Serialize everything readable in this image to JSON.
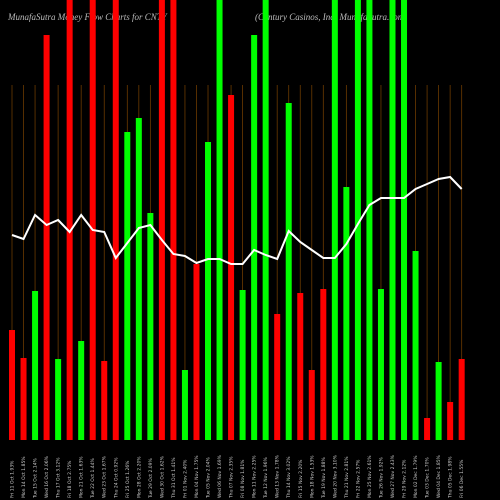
{
  "chart_data": {
    "type": "bar",
    "title": "MunafaSutra  Money Flow  Charts for CNTY",
    "subtitle": "(Century Casinos, Inc) MunafaSutra.com",
    "categories": [
      "Fri 11 Oct 1.93%",
      "Mon 14 Oct 1.85%",
      "Tue 15 Oct 2.14%",
      "Wed 16 Oct 2.06%",
      "Thu 17 Oct 3.12%",
      "Fri 18 Oct 2.75%",
      "Mon 21 Oct 1.63%",
      "Tue 22 Oct 1.44%",
      "Wed 23 Oct 1.67%",
      "Thu 24 Oct 0.92%",
      "Fri 25 Oct 1.26%",
      "Mon 28 Oct 2.20%",
      "Tue 29 Oct 2.09%",
      "Wed 30 Oct 1.62%",
      "Thu 31 Oct 1.41%",
      "Fri 01 Nov 2.40%",
      "Mon 04 Nov 1.75%",
      "Tue 05 Nov 2.04%",
      "Wed 06 Nov 1.69%",
      "Thu 07 Nov 2.35%",
      "Fri 08 Nov 1.81%",
      "Mon 11 Nov 2.25%",
      "Tue 12 Nov 1.96%",
      "Wed 13 Nov 1.78%",
      "Thu 14 Nov 3.02%",
      "Fri 15 Nov 2.20%",
      "Mon 18 Nov 1.53%",
      "Tue 19 Nov 1.88%",
      "Wed 20 Nov 3.10%",
      "Thu 21 Nov 2.81%",
      "Fri 22 Nov 2.57%",
      "Mon 25 Nov 2.61%",
      "Tue 26 Nov 1.92%",
      "Wed 27 Nov 2.43%",
      "Fri 29 Nov 2.12%",
      "Mon 02 Dec 1.79%",
      "Tue 03 Dec 1.70%",
      "Wed 04 Dec 1.85%",
      "Thu 05 Dec 1.98%",
      "Fri 06 Dec 1.55%"
    ],
    "ylim": [
      0,
      440
    ],
    "series": [
      {
        "name": "Money Flow",
        "type": "bar",
        "values": [
          110,
          82,
          149,
          405,
          81,
          440,
          99,
          440,
          79,
          440,
          308,
          322,
          227,
          440,
          440,
          70,
          176,
          298,
          440,
          345,
          150,
          405,
          440,
          126,
          337,
          147,
          70,
          151,
          440,
          253,
          440,
          440,
          151,
          440,
          440,
          189,
          22,
          78,
          38,
          81
        ],
        "colors": [
          "#ff0000",
          "#ff0000",
          "#00ff00",
          "#ff0000",
          "#00ff00",
          "#ff0000",
          "#00ff00",
          "#ff0000",
          "#ff0000",
          "#ff0000",
          "#00ff00",
          "#00ff00",
          "#00ff00",
          "#ff0000",
          "#ff0000",
          "#00ff00",
          "#ff0000",
          "#00ff00",
          "#00ff00",
          "#ff0000",
          "#00ff00",
          "#00ff00",
          "#00ff00",
          "#ff0000",
          "#00ff00",
          "#ff0000",
          "#ff0000",
          "#ff0000",
          "#00ff00",
          "#00ff00",
          "#00ff00",
          "#00ff00",
          "#00ff00",
          "#00ff00",
          "#00ff00",
          "#00ff00",
          "#ff0000",
          "#00ff00",
          "#ff0000",
          "#ff0000"
        ]
      },
      {
        "name": "Price",
        "type": "line",
        "color": "#ffffff",
        "values": [
          205,
          201,
          225,
          215,
          220,
          208,
          225,
          210,
          208,
          182,
          197,
          212,
          215,
          200,
          186,
          184,
          177,
          181,
          181,
          176,
          176,
          190,
          185,
          181,
          209,
          198,
          190,
          182,
          182,
          196,
          216,
          235,
          242,
          242,
          242,
          251,
          256,
          261,
          263,
          251
        ]
      }
    ],
    "grid_color": "#6b3a00"
  }
}
